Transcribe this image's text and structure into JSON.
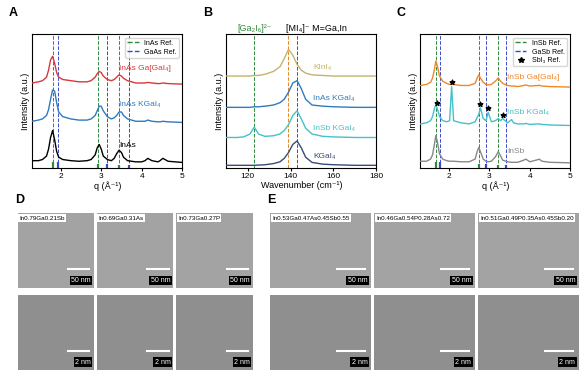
{
  "chart_data": [
    {
      "type": "line",
      "title": "A",
      "x_label": "q (Å⁻¹)",
      "y_label": "Intensity (a.u.)",
      "xlim": [
        1.3,
        5.0
      ],
      "xticks": [
        2,
        3,
        4,
        5
      ],
      "ylim": [
        0,
        11.5
      ],
      "tick_labels": "x",
      "legend": "upper right",
      "x": [
        1.3,
        1.45,
        1.55,
        1.65,
        1.7,
        1.75,
        1.8,
        1.85,
        1.9,
        1.95,
        2.05,
        2.25,
        2.45,
        2.65,
        2.75,
        2.85,
        2.9,
        2.95,
        3.0,
        3.05,
        3.15,
        3.25,
        3.32,
        3.38,
        3.44,
        3.5,
        3.55,
        3.65,
        3.85,
        4.0,
        4.08,
        4.15,
        4.25,
        4.4,
        4.45,
        4.52,
        4.65,
        5.0
      ],
      "series": [
        {
          "name": "InAs",
          "color": "#000000",
          "values": [
            0.6,
            0.6,
            0.7,
            1.0,
            1.6,
            2.6,
            3.2,
            2.4,
            1.4,
            0.9,
            0.7,
            0.6,
            0.55,
            0.6,
            0.7,
            1.1,
            1.7,
            2.0,
            1.6,
            1.0,
            0.7,
            0.6,
            0.8,
            1.2,
            1.5,
            1.3,
            0.9,
            0.6,
            0.5,
            0.5,
            0.6,
            0.8,
            0.6,
            0.5,
            0.6,
            0.8,
            0.55,
            0.45
          ]
        },
        {
          "name": "InAs KGaI₄",
          "color": "#2e7bbf",
          "values": [
            4.0,
            4.1,
            4.2,
            4.5,
            5.0,
            5.9,
            6.7,
            6.6,
            5.6,
            4.8,
            4.4,
            4.2,
            4.1,
            4.1,
            4.2,
            4.5,
            4.9,
            5.3,
            5.3,
            4.9,
            4.4,
            4.2,
            4.3,
            4.5,
            4.8,
            4.8,
            4.5,
            4.2,
            4.0,
            4.0,
            4.0,
            4.1,
            4.0,
            3.95,
            3.95,
            4.0,
            3.95,
            3.9
          ]
        },
        {
          "name": "InAs Ga[GaI₄]",
          "color": "#d9383a",
          "values": [
            7.3,
            7.4,
            7.5,
            7.8,
            8.4,
            9.3,
            9.6,
            9.0,
            8.2,
            7.8,
            7.6,
            7.5,
            7.4,
            7.4,
            7.5,
            7.8,
            8.1,
            8.3,
            8.2,
            7.9,
            7.6,
            7.5,
            7.6,
            7.8,
            8.0,
            7.9,
            7.7,
            7.5,
            7.3,
            7.3,
            7.3,
            7.35,
            7.3,
            7.25,
            7.25,
            7.3,
            7.25,
            7.2
          ]
        }
      ],
      "references": [
        {
          "name": "InAs Ref.",
          "color": "#2e8b3e",
          "line_style": "dashed",
          "positions": [
            1.8,
            2.93,
            3.44
          ],
          "heights": [
            0.5,
            0.35,
            0.25
          ]
        },
        {
          "name": "GaAs Ref.",
          "color": "#3b4bc8",
          "line_style": "dashed",
          "positions": [
            1.93,
            3.15,
            3.69
          ],
          "heights": [
            0.5,
            0.35,
            0.25
          ]
        }
      ]
    },
    {
      "type": "line",
      "title": "B",
      "x_label": "Wavenumber (cm⁻¹)",
      "y_label": "Intensity (a.u.)",
      "xlim": [
        110,
        180
      ],
      "xticks": [
        120,
        140,
        160,
        180
      ],
      "ylim": [
        0,
        11.5
      ],
      "tick_labels": "x",
      "x": [
        110,
        115,
        118,
        121,
        123,
        125,
        128,
        132,
        135,
        137,
        139,
        141,
        143,
        145,
        147,
        150,
        155,
        160,
        170,
        180
      ],
      "series": [
        {
          "name": "KGaI₄",
          "color": "#3a4a7a",
          "values": [
            0.2,
            0.2,
            0.2,
            0.2,
            0.2,
            0.22,
            0.25,
            0.35,
            0.5,
            0.8,
            1.3,
            2.0,
            2.3,
            1.7,
            0.9,
            0.45,
            0.3,
            0.25,
            0.2,
            0.2
          ]
        },
        {
          "name": "InSb KGaI₄",
          "color": "#45c1c9",
          "values": [
            2.6,
            2.6,
            2.65,
            2.9,
            3.5,
            2.9,
            2.7,
            2.75,
            2.9,
            3.2,
            3.7,
            4.5,
            4.9,
            4.2,
            3.4,
            2.9,
            2.7,
            2.65,
            2.6,
            2.6
          ]
        },
        {
          "name": "InAs KGaI₄",
          "color": "#2e7bbf",
          "values": [
            5.2,
            5.2,
            5.2,
            5.2,
            5.25,
            5.25,
            5.3,
            5.4,
            5.6,
            5.9,
            6.5,
            7.3,
            7.5,
            6.8,
            5.9,
            5.4,
            5.3,
            5.25,
            5.2,
            5.2
          ]
        },
        {
          "name": "KInI₄",
          "color": "#c3b36b",
          "values": [
            7.9,
            7.9,
            7.9,
            7.9,
            7.95,
            7.95,
            8.05,
            8.3,
            8.7,
            9.4,
            10.2,
            9.7,
            8.9,
            8.4,
            8.15,
            8.0,
            7.95,
            7.9,
            7.9,
            7.9
          ]
        }
      ],
      "references": [
        {
          "name": "[Ga₂I₆]²⁻",
          "color": "#2e8b3e",
          "line_style": "dashed",
          "positions": [
            123
          ]
        },
        {
          "name": "[MI₄]⁻ M=Ga,In",
          "colors": [
            "#3b4bc8",
            "#e08a2a"
          ],
          "line_style": "dashed",
          "positions": [
            143,
            139
          ]
        }
      ]
    },
    {
      "type": "line",
      "title": "C",
      "x_label": "q (Å⁻¹)",
      "y_label": "Intensity (a.u.)",
      "xlim": [
        1.3,
        5.0
      ],
      "xticks": [
        2,
        3,
        4,
        5
      ],
      "ylim": [
        0,
        12.5
      ],
      "tick_labels": "x",
      "legend": "upper right",
      "x": [
        1.3,
        1.45,
        1.55,
        1.6,
        1.65,
        1.68,
        1.72,
        1.77,
        1.85,
        1.95,
        2.02,
        2.07,
        2.12,
        2.3,
        2.5,
        2.65,
        2.7,
        2.74,
        2.78,
        2.85,
        2.92,
        2.97,
        3.05,
        3.15,
        3.22,
        3.28,
        3.33,
        3.45,
        3.55,
        3.6,
        3.7,
        3.85,
        3.9,
        4.0,
        4.2,
        4.23,
        4.3,
        4.5,
        5.0
      ],
      "series": [
        {
          "name": "InSb",
          "color": "#888888",
          "values": [
            0.6,
            0.6,
            0.8,
            1.2,
            2.3,
            3.0,
            2.4,
            1.3,
            0.8,
            0.65,
            0.6,
            0.6,
            0.6,
            0.55,
            0.55,
            0.8,
            1.5,
            1.9,
            1.5,
            0.8,
            0.6,
            0.55,
            0.6,
            1.0,
            1.5,
            1.1,
            0.7,
            0.55,
            0.5,
            0.5,
            0.5,
            0.7,
            0.8,
            0.55,
            0.75,
            0.8,
            0.6,
            0.5,
            0.45
          ]
        },
        {
          "name": "InSb KGaI₄",
          "color": "#45c1c9",
          "values": [
            4.1,
            4.2,
            4.4,
            4.8,
            5.6,
            5.9,
            5.5,
            4.8,
            4.4,
            4.3,
            4.4,
            7.6,
            4.4,
            4.2,
            4.1,
            4.3,
            4.7,
            5.0,
            5.6,
            4.6,
            4.4,
            5.2,
            4.3,
            4.4,
            4.6,
            4.4,
            4.6,
            4.2,
            4.5,
            4.2,
            4.1,
            4.1,
            4.15,
            4.05,
            4.1,
            4.1,
            4.05,
            4.0,
            3.95
          ]
        },
        {
          "name": "InSb Ga[GaI₄]",
          "color": "#f0882a",
          "values": [
            7.7,
            7.8,
            8.0,
            8.4,
            9.3,
            10.0,
            9.5,
            8.6,
            8.1,
            7.9,
            7.8,
            7.8,
            7.8,
            7.7,
            7.7,
            7.9,
            8.4,
            8.7,
            8.4,
            8.0,
            7.8,
            7.75,
            7.8,
            8.1,
            8.4,
            8.1,
            7.9,
            7.7,
            7.65,
            7.65,
            7.6,
            7.7,
            7.75,
            7.65,
            7.7,
            7.72,
            7.65,
            7.6,
            7.55
          ]
        }
      ],
      "references": [
        {
          "name": "InSb Ref.",
          "color": "#2e8b3e",
          "line_style": "dashed",
          "positions": [
            1.68,
            2.74,
            3.22
          ],
          "heights": [
            0.5,
            0.35,
            0.25
          ]
        },
        {
          "name": "GaSb Ref.",
          "color": "#3b4bc8",
          "line_style": "dashed",
          "positions": [
            1.785,
            2.915,
            3.418
          ],
          "heights": [
            0.5,
            0.35,
            0.25
          ]
        }
      ],
      "markers": [
        {
          "name": "SbI₃ Ref.",
          "marker": "star",
          "color": "#000000",
          "x": [
            1.72,
            2.07,
            2.78,
            2.97,
            3.33
          ],
          "values": [
            6.1,
            8.0,
            5.95,
            5.55,
            4.95
          ]
        }
      ]
    }
  ],
  "image_panels": [
    {
      "title": "D",
      "images": [
        {
          "label": "In0.79Ga0.21Sb",
          "scale_bars": [
            "50 nm",
            "2 nm"
          ]
        },
        {
          "label": "In0.69Ga0.31As",
          "scale_bars": [
            "50 nm",
            "2 nm"
          ]
        },
        {
          "label": "In0.73Ga0.27P",
          "scale_bars": [
            "50 nm",
            "2 nm"
          ]
        }
      ]
    },
    {
      "title": "E",
      "images": [
        {
          "label": "In0.53Ga0.47As0.45Sb0.55",
          "scale_bars": [
            "50 nm",
            "2 nm"
          ]
        },
        {
          "label": "In0.46Ga0.54P0.28As0.72",
          "scale_bars": [
            "50 nm",
            "2 nm"
          ]
        },
        {
          "label": "In0.51Ga0.49P0.35As0.45Sb0.20",
          "scale_bars": [
            "50 nm",
            "2 nm"
          ]
        }
      ]
    }
  ]
}
